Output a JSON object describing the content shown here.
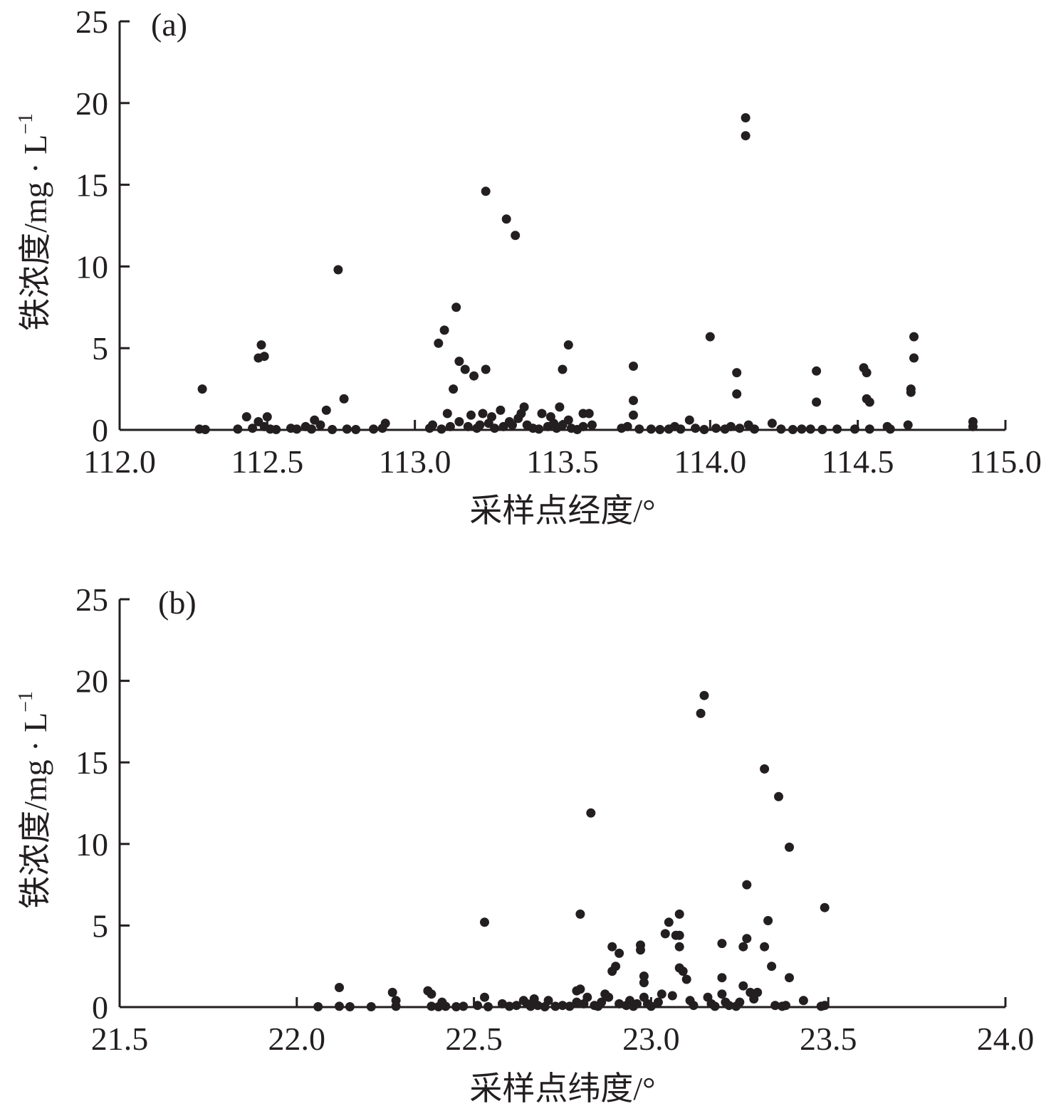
{
  "chart_data": [
    {
      "type": "scatter",
      "panel_label": "(a)",
      "xlabel": "采样点经度/°",
      "ylabel_main": "铁浓度/mg · L",
      "ylabel_sup": "−1",
      "xlim": [
        112.0,
        115.0
      ],
      "ylim": [
        0,
        25
      ],
      "xticks": [
        "112.0",
        "112.5",
        "113.0",
        "113.5",
        "114.0",
        "114.5",
        "115.0"
      ],
      "yticks": [
        "0",
        "5",
        "10",
        "15",
        "20",
        "25"
      ],
      "marker_color": "#231f20",
      "points": [
        [
          112.28,
          2.5
        ],
        [
          112.27,
          0.05
        ],
        [
          112.29,
          0.02
        ],
        [
          112.4,
          0.05
        ],
        [
          112.43,
          0.8
        ],
        [
          112.45,
          0.1
        ],
        [
          112.47,
          0.5
        ],
        [
          112.47,
          4.4
        ],
        [
          112.48,
          5.2
        ],
        [
          112.49,
          4.5
        ],
        [
          112.49,
          0.2
        ],
        [
          112.5,
          0.8
        ],
        [
          112.51,
          0.05
        ],
        [
          112.53,
          0.02
        ],
        [
          112.58,
          0.1
        ],
        [
          112.6,
          0.05
        ],
        [
          112.63,
          0.2
        ],
        [
          112.65,
          0.05
        ],
        [
          112.66,
          0.6
        ],
        [
          112.68,
          0.3
        ],
        [
          112.7,
          1.2
        ],
        [
          112.72,
          0.02
        ],
        [
          112.74,
          9.8
        ],
        [
          112.76,
          1.9
        ],
        [
          112.77,
          0.05
        ],
        [
          112.8,
          0.02
        ],
        [
          112.86,
          0.05
        ],
        [
          112.89,
          0.1
        ],
        [
          112.9,
          0.4
        ],
        [
          113.05,
          0.1
        ],
        [
          113.06,
          0.3
        ],
        [
          113.08,
          5.3
        ],
        [
          113.09,
          0.05
        ],
        [
          113.1,
          6.1
        ],
        [
          113.11,
          1.0
        ],
        [
          113.12,
          0.2
        ],
        [
          113.13,
          2.5
        ],
        [
          113.14,
          7.5
        ],
        [
          113.15,
          4.2
        ],
        [
          113.15,
          0.5
        ],
        [
          113.17,
          3.7
        ],
        [
          113.18,
          0.2
        ],
        [
          113.19,
          0.9
        ],
        [
          113.2,
          3.3
        ],
        [
          113.21,
          0.1
        ],
        [
          113.22,
          0.3
        ],
        [
          113.23,
          1.0
        ],
        [
          113.24,
          3.7
        ],
        [
          113.24,
          14.6
        ],
        [
          113.25,
          0.4
        ],
        [
          113.26,
          0.8
        ],
        [
          113.27,
          0.1
        ],
        [
          113.29,
          1.2
        ],
        [
          113.3,
          0.2
        ],
        [
          113.31,
          12.9
        ],
        [
          113.32,
          0.5
        ],
        [
          113.33,
          0.3
        ],
        [
          113.34,
          11.9
        ],
        [
          113.35,
          0.7
        ],
        [
          113.36,
          1.0
        ],
        [
          113.37,
          1.4
        ],
        [
          113.38,
          0.3
        ],
        [
          113.4,
          0.1
        ],
        [
          113.42,
          0.05
        ],
        [
          113.43,
          1.0
        ],
        [
          113.45,
          0.2
        ],
        [
          113.46,
          0.8
        ],
        [
          113.47,
          0.4
        ],
        [
          113.48,
          0.1
        ],
        [
          113.49,
          1.4
        ],
        [
          113.5,
          3.7
        ],
        [
          113.5,
          0.3
        ],
        [
          113.52,
          0.6
        ],
        [
          113.52,
          5.2
        ],
        [
          113.53,
          0.1
        ],
        [
          113.55,
          0.02
        ],
        [
          113.57,
          0.2
        ],
        [
          113.57,
          1.0
        ],
        [
          113.59,
          1.0
        ],
        [
          113.6,
          0.3
        ],
        [
          113.7,
          0.1
        ],
        [
          113.72,
          0.2
        ],
        [
          113.74,
          3.9
        ],
        [
          113.74,
          1.8
        ],
        [
          113.74,
          0.9
        ],
        [
          113.76,
          0.05
        ],
        [
          113.8,
          0.05
        ],
        [
          113.83,
          0.02
        ],
        [
          113.86,
          0.05
        ],
        [
          113.88,
          0.2
        ],
        [
          113.9,
          0.05
        ],
        [
          113.93,
          0.6
        ],
        [
          113.95,
          0.1
        ],
        [
          113.98,
          0.02
        ],
        [
          114.0,
          5.7
        ],
        [
          114.02,
          0.1
        ],
        [
          114.05,
          0.05
        ],
        [
          114.07,
          0.2
        ],
        [
          114.09,
          3.5
        ],
        [
          114.09,
          2.2
        ],
        [
          114.1,
          0.1
        ],
        [
          114.12,
          19.1
        ],
        [
          114.12,
          18.0
        ],
        [
          114.13,
          0.3
        ],
        [
          114.15,
          0.05
        ],
        [
          114.21,
          0.4
        ],
        [
          114.24,
          0.05
        ],
        [
          114.28,
          0.02
        ],
        [
          114.31,
          0.05
        ],
        [
          114.34,
          0.05
        ],
        [
          114.36,
          3.6
        ],
        [
          114.36,
          1.7
        ],
        [
          114.38,
          0.02
        ],
        [
          114.43,
          0.05
        ],
        [
          114.49,
          0.05
        ],
        [
          114.52,
          3.8
        ],
        [
          114.53,
          3.5
        ],
        [
          114.53,
          1.9
        ],
        [
          114.54,
          1.7
        ],
        [
          114.54,
          0.05
        ],
        [
          114.6,
          0.2
        ],
        [
          114.61,
          0.05
        ],
        [
          114.67,
          0.3
        ],
        [
          114.68,
          2.5
        ],
        [
          114.68,
          2.3
        ],
        [
          114.69,
          4.4
        ],
        [
          114.69,
          5.7
        ],
        [
          114.89,
          0.5
        ],
        [
          114.89,
          0.2
        ]
      ]
    },
    {
      "type": "scatter",
      "panel_label": "(b)",
      "xlabel": "采样点纬度/°",
      "ylabel_main": "铁浓度/mg · L",
      "ylabel_sup": "−1",
      "xlim": [
        21.5,
        24.0
      ],
      "ylim": [
        0,
        25
      ],
      "xticks": [
        "21.5",
        "22.0",
        "22.5",
        "23.0",
        "23.5",
        "24.0"
      ],
      "yticks": [
        "0",
        "5",
        "10",
        "15",
        "20",
        "25"
      ],
      "marker_color": "#231f20",
      "points": [
        [
          22.06,
          0.02
        ],
        [
          22.12,
          1.2
        ],
        [
          22.12,
          0.05
        ],
        [
          22.15,
          0.02
        ],
        [
          22.21,
          0.02
        ],
        [
          22.27,
          0.9
        ],
        [
          22.28,
          0.4
        ],
        [
          22.28,
          0.05
        ],
        [
          22.37,
          1.0
        ],
        [
          22.38,
          0.8
        ],
        [
          22.38,
          0.05
        ],
        [
          22.4,
          0.02
        ],
        [
          22.41,
          0.3
        ],
        [
          22.42,
          0.05
        ],
        [
          22.45,
          0.02
        ],
        [
          22.47,
          0.05
        ],
        [
          22.51,
          0.1
        ],
        [
          22.53,
          5.2
        ],
        [
          22.53,
          0.6
        ],
        [
          22.54,
          0.02
        ],
        [
          22.58,
          0.2
        ],
        [
          22.6,
          0.05
        ],
        [
          22.62,
          0.1
        ],
        [
          22.64,
          0.4
        ],
        [
          22.65,
          0.2
        ],
        [
          22.66,
          0.05
        ],
        [
          22.67,
          0.5
        ],
        [
          22.68,
          0.1
        ],
        [
          22.7,
          0.02
        ],
        [
          22.71,
          0.4
        ],
        [
          22.73,
          0.05
        ],
        [
          22.75,
          0.1
        ],
        [
          22.77,
          0.05
        ],
        [
          22.79,
          0.3
        ],
        [
          22.79,
          1.0
        ],
        [
          22.8,
          1.1
        ],
        [
          22.8,
          5.7
        ],
        [
          22.81,
          0.2
        ],
        [
          22.82,
          0.6
        ],
        [
          22.83,
          11.9
        ],
        [
          22.84,
          0.1
        ],
        [
          22.85,
          0.05
        ],
        [
          22.86,
          0.3
        ],
        [
          22.87,
          0.8
        ],
        [
          22.88,
          0.6
        ],
        [
          22.89,
          3.7
        ],
        [
          22.89,
          2.2
        ],
        [
          22.9,
          2.5
        ],
        [
          22.91,
          3.3
        ],
        [
          22.91,
          0.2
        ],
        [
          22.93,
          0.1
        ],
        [
          22.94,
          0.4
        ],
        [
          22.95,
          0.05
        ],
        [
          22.96,
          0.2
        ],
        [
          22.97,
          3.5
        ],
        [
          22.97,
          3.8
        ],
        [
          22.98,
          1.9
        ],
        [
          22.98,
          1.5
        ],
        [
          22.98,
          0.6
        ],
        [
          22.99,
          0.2
        ],
        [
          23.0,
          0.05
        ],
        [
          23.02,
          0.3
        ],
        [
          23.03,
          0.8
        ],
        [
          23.04,
          4.5
        ],
        [
          23.05,
          5.2
        ],
        [
          23.06,
          0.7
        ],
        [
          23.07,
          4.4
        ],
        [
          23.08,
          5.7
        ],
        [
          23.08,
          4.4
        ],
        [
          23.08,
          3.7
        ],
        [
          23.08,
          2.4
        ],
        [
          23.09,
          2.2
        ],
        [
          23.1,
          1.7
        ],
        [
          23.11,
          0.4
        ],
        [
          23.12,
          0.1
        ],
        [
          23.14,
          18.0
        ],
        [
          23.15,
          19.1
        ],
        [
          23.16,
          0.6
        ],
        [
          23.17,
          0.2
        ],
        [
          23.18,
          0.05
        ],
        [
          23.2,
          3.9
        ],
        [
          23.2,
          1.8
        ],
        [
          23.2,
          0.8
        ],
        [
          23.21,
          0.3
        ],
        [
          23.22,
          0.1
        ],
        [
          23.24,
          0.05
        ],
        [
          23.25,
          0.3
        ],
        [
          23.26,
          3.7
        ],
        [
          23.26,
          1.3
        ],
        [
          23.27,
          7.5
        ],
        [
          23.27,
          4.2
        ],
        [
          23.28,
          0.9
        ],
        [
          23.29,
          0.5
        ],
        [
          23.3,
          0.9
        ],
        [
          23.32,
          14.6
        ],
        [
          23.32,
          3.7
        ],
        [
          23.33,
          5.3
        ],
        [
          23.34,
          2.5
        ],
        [
          23.35,
          0.1
        ],
        [
          23.36,
          12.9
        ],
        [
          23.37,
          0.05
        ],
        [
          23.38,
          0.1
        ],
        [
          23.39,
          9.8
        ],
        [
          23.39,
          1.8
        ],
        [
          23.43,
          0.4
        ],
        [
          23.48,
          0.05
        ],
        [
          23.49,
          6.1
        ],
        [
          23.49,
          0.1
        ]
      ]
    }
  ]
}
